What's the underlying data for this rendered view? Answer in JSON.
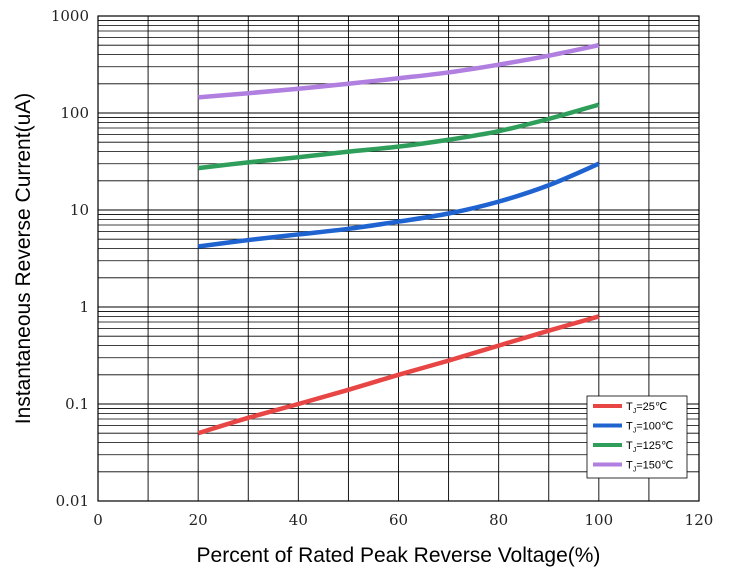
{
  "chart_data": {
    "type": "line",
    "xlabel": "Percent of Rated Peak Reverse Voltage(%)",
    "ylabel": "Instantaneous Reverse Current(uA)",
    "xlim": [
      0,
      120
    ],
    "ylim": [
      0.01,
      1000
    ],
    "y_scale": "log",
    "grid": true,
    "legend_position": "bottom-right",
    "x_ticks": [
      0,
      20,
      40,
      60,
      80,
      100,
      120
    ],
    "x_tick_labels": [
      "0",
      "20",
      "40",
      "60",
      "80",
      "100",
      "120"
    ],
    "y_ticks": [
      0.01,
      0.1,
      1,
      10,
      100,
      1000
    ],
    "y_tick_labels": [
      "0.01",
      "0.1",
      "1",
      "10",
      "100",
      "1000"
    ],
    "series": [
      {
        "name": "TJ=25℃",
        "legend": {
          "main": "T",
          "sub": "J",
          "suffix": "=25℃"
        },
        "color": "#e84545",
        "x": [
          20,
          30,
          40,
          50,
          60,
          70,
          80,
          90,
          100
        ],
        "y": [
          0.05,
          0.072,
          0.1,
          0.14,
          0.2,
          0.28,
          0.4,
          0.57,
          0.8
        ]
      },
      {
        "name": "TJ=100℃",
        "legend": {
          "main": "T",
          "sub": "J",
          "suffix": "=100℃"
        },
        "color": "#1e63d0",
        "x": [
          20,
          30,
          40,
          50,
          60,
          70,
          80,
          90,
          100
        ],
        "y": [
          4.2,
          4.9,
          5.6,
          6.4,
          7.6,
          9.2,
          12.2,
          18,
          30
        ]
      },
      {
        "name": "TJ=125℃",
        "legend": {
          "main": "T",
          "sub": "J",
          "suffix": "=125℃"
        },
        "color": "#2e9e5a",
        "x": [
          20,
          30,
          40,
          50,
          60,
          70,
          80,
          90,
          100
        ],
        "y": [
          27,
          31,
          35,
          40,
          45,
          53,
          65,
          87,
          122
        ]
      },
      {
        "name": "TJ=150℃",
        "legend": {
          "main": "T",
          "sub": "J",
          "suffix": "=150℃"
        },
        "color": "#b07fe0",
        "x": [
          20,
          30,
          40,
          50,
          60,
          70,
          80,
          90,
          100
        ],
        "y": [
          145,
          160,
          178,
          200,
          228,
          262,
          315,
          390,
          500
        ]
      }
    ]
  }
}
